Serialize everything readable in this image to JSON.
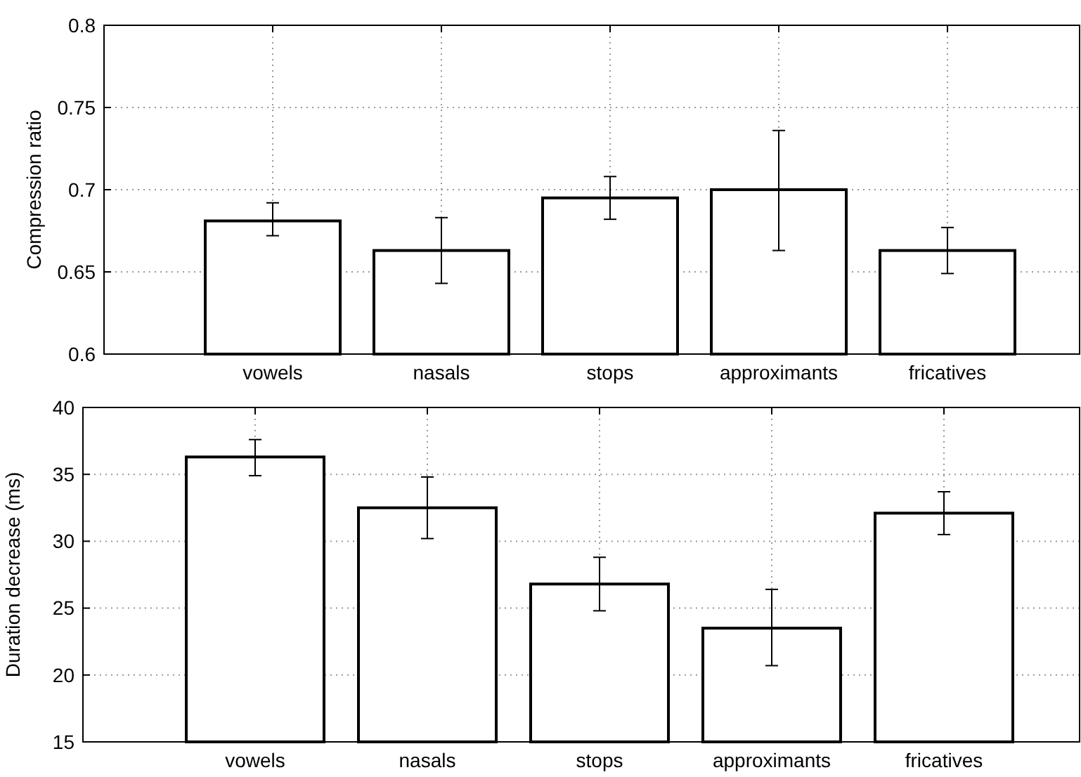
{
  "chart_data": [
    {
      "type": "bar",
      "ylabel": "Compression ratio",
      "categories": [
        "vowels",
        "nasals",
        "stops",
        "approximants",
        "fricatives"
      ],
      "values": [
        0.681,
        0.663,
        0.695,
        0.7,
        0.663
      ],
      "errors": [
        [
          0.672,
          0.692
        ],
        [
          0.643,
          0.683
        ],
        [
          0.682,
          0.708
        ],
        [
          0.663,
          0.736
        ],
        [
          0.649,
          0.677
        ]
      ],
      "color": "#ffffff",
      "ylim": [
        0.6,
        0.8
      ],
      "yticks": [
        0.6,
        0.65,
        0.7,
        0.75,
        0.8
      ],
      "grid": true
    },
    {
      "type": "bar",
      "ylabel": "Duration decrease (ms)",
      "categories": [
        "vowels",
        "nasals",
        "stops",
        "approximants",
        "fricatives"
      ],
      "values": [
        36.3,
        32.5,
        26.8,
        23.5,
        32.1
      ],
      "errors": [
        [
          34.9,
          37.6
        ],
        [
          30.2,
          34.8
        ],
        [
          24.8,
          28.8
        ],
        [
          20.7,
          26.4
        ],
        [
          30.5,
          33.7
        ]
      ],
      "color": "#ffffff",
      "ylim": [
        15,
        40
      ],
      "yticks": [
        15,
        20,
        25,
        30,
        35,
        40
      ],
      "grid": true
    }
  ]
}
